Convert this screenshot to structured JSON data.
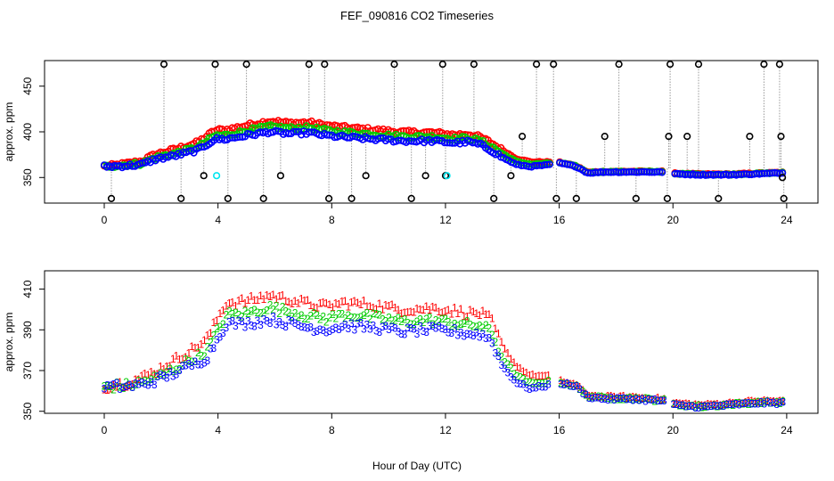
{
  "title": "FEF_090816  CO2 Timeseries",
  "xlabel": "Hour of Day (UTC)",
  "colors": {
    "s1": "#ff0000",
    "s2": "#00cc00",
    "s3": "#0000ff",
    "spike": "#000000",
    "cyan": "#00e5ee",
    "line": "#999999"
  },
  "chart_data": [
    {
      "type": "scatter",
      "ylabel": "approx. ppm",
      "xlim": [
        -2.1,
        25.1
      ],
      "ylim": [
        322,
        478
      ],
      "xticks": [
        "0",
        "4",
        "8",
        "12",
        "16",
        "20",
        "24"
      ],
      "yticks": [
        "350",
        "400",
        "450"
      ],
      "anchors": [
        [
          0,
          362
        ],
        [
          0.8,
          363
        ],
        [
          1.3,
          364
        ],
        [
          1.8,
          370
        ],
        [
          2.5,
          374
        ],
        [
          3.3,
          380
        ],
        [
          3.9,
          392
        ],
        [
          4.3,
          392
        ],
        [
          5.0,
          396
        ],
        [
          5.8,
          400
        ],
        [
          6.5,
          398
        ],
        [
          7.2,
          399
        ],
        [
          7.8,
          396
        ],
        [
          8.5,
          394
        ],
        [
          9.5,
          392
        ],
        [
          10.5,
          390
        ],
        [
          11.5,
          390
        ],
        [
          12.3,
          388
        ],
        [
          12.8,
          389
        ],
        [
          13.2,
          386
        ],
        [
          13.6,
          380
        ],
        [
          14.0,
          372
        ],
        [
          14.5,
          364
        ],
        [
          15.0,
          362
        ],
        [
          15.7,
          364
        ],
        [
          15.85,
          null
        ],
        [
          16.0,
          366
        ],
        [
          16.6,
          362
        ],
        [
          17.0,
          355
        ],
        [
          17.6,
          356
        ],
        [
          18.5,
          356
        ],
        [
          19.7,
          356
        ],
        [
          19.85,
          null
        ],
        [
          20.0,
          354
        ],
        [
          21.0,
          353
        ],
        [
          22.0,
          353
        ],
        [
          23.0,
          354
        ],
        [
          23.9,
          355
        ]
      ],
      "offsets": {
        "s1": [
          0,
          6,
          10,
          12,
          8,
          2
        ],
        "s2": [
          0,
          2,
          4,
          6,
          4,
          1
        ],
        "s3": [
          0,
          0,
          0,
          0,
          0,
          0
        ]
      },
      "spikes": [
        [
          0.25,
          327
        ],
        [
          2.1,
          474
        ],
        [
          2.7,
          327
        ],
        [
          3.5,
          352
        ],
        [
          3.9,
          474
        ],
        [
          4.35,
          327
        ],
        [
          5.0,
          474
        ],
        [
          5.6,
          327
        ],
        [
          6.2,
          352
        ],
        [
          7.2,
          474
        ],
        [
          7.75,
          474
        ],
        [
          7.9,
          327
        ],
        [
          8.7,
          327
        ],
        [
          9.2,
          352
        ],
        [
          10.2,
          474
        ],
        [
          10.8,
          327
        ],
        [
          11.3,
          352
        ],
        [
          11.9,
          474
        ],
        [
          12.0,
          352
        ],
        [
          13.0,
          474
        ],
        [
          13.7,
          327
        ],
        [
          14.3,
          352
        ],
        [
          14.7,
          395
        ],
        [
          15.2,
          474
        ],
        [
          15.8,
          474
        ],
        [
          15.9,
          327
        ],
        [
          16.6,
          327
        ],
        [
          17.6,
          395
        ],
        [
          18.1,
          474
        ],
        [
          18.7,
          327
        ],
        [
          19.8,
          327
        ],
        [
          19.85,
          395
        ],
        [
          19.9,
          474
        ],
        [
          20.5,
          395
        ],
        [
          20.9,
          474
        ],
        [
          21.6,
          327
        ],
        [
          22.7,
          395
        ],
        [
          23.2,
          474
        ],
        [
          23.75,
          474
        ],
        [
          23.8,
          395
        ],
        [
          23.85,
          350
        ],
        [
          23.9,
          327
        ]
      ],
      "cyan_points": [
        [
          3.95,
          352
        ],
        [
          12.05,
          352
        ]
      ]
    },
    {
      "type": "scatter",
      "ylabel": "approx. ppm",
      "xlim": [
        -2.1,
        25.1
      ],
      "ylim": [
        349,
        419
      ],
      "xticks": [
        "0",
        "4",
        "8",
        "12",
        "16",
        "20",
        "24"
      ],
      "yticks": [
        "350",
        "370",
        "390",
        "410"
      ],
      "anchors": [
        [
          0,
          362
        ],
        [
          0.8,
          362
        ],
        [
          1.3,
          363
        ],
        [
          1.8,
          365
        ],
        [
          2.5,
          369
        ],
        [
          3.3,
          374
        ],
        [
          3.6,
          376
        ],
        [
          4.0,
          386
        ],
        [
          4.3,
          393
        ],
        [
          5.0,
          393
        ],
        [
          5.8,
          395
        ],
        [
          6.5,
          393
        ],
        [
          7.2,
          391
        ],
        [
          7.8,
          390
        ],
        [
          8.5,
          392
        ],
        [
          9.5,
          391
        ],
        [
          10.5,
          389
        ],
        [
          11.5,
          390
        ],
        [
          12.3,
          389
        ],
        [
          12.8,
          388
        ],
        [
          13.2,
          388
        ],
        [
          13.6,
          385
        ],
        [
          14.0,
          372
        ],
        [
          14.5,
          364
        ],
        [
          15.0,
          361
        ],
        [
          15.7,
          363
        ],
        [
          15.85,
          null
        ],
        [
          16.0,
          364
        ],
        [
          16.6,
          362
        ],
        [
          17.0,
          357
        ],
        [
          17.6,
          356
        ],
        [
          18.5,
          356
        ],
        [
          19.7,
          355
        ],
        [
          19.85,
          null
        ],
        [
          20.0,
          353
        ],
        [
          21.0,
          352
        ],
        [
          22.0,
          353
        ],
        [
          23.0,
          354
        ],
        [
          23.9,
          354
        ]
      ],
      "offsets": {
        "s1": [
          0,
          5,
          10,
          12,
          10,
          3
        ],
        "s2": [
          0,
          1.5,
          4,
          6,
          4,
          1
        ],
        "s3": [
          0,
          0,
          0,
          0,
          0,
          0
        ]
      },
      "labels": {
        "s1": "1",
        "s2": "2",
        "s3": "3"
      }
    }
  ]
}
